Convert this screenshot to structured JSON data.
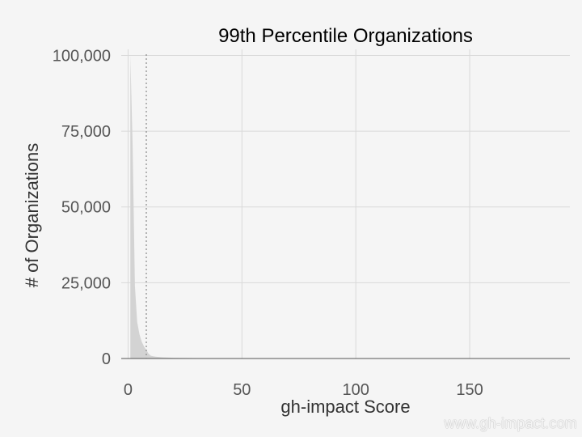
{
  "chart_data": {
    "type": "area",
    "title": "99th Percentile Organizations",
    "xlabel": "gh-impact Score",
    "ylabel": "# of Organizations",
    "xlim": [
      -3,
      194
    ],
    "ylim": [
      0,
      102000
    ],
    "x_ticks": [
      0,
      50,
      100,
      150
    ],
    "x_tick_labels": [
      "0",
      "50",
      "100",
      "150"
    ],
    "y_ticks": [
      0,
      25000,
      50000,
      75000,
      100000
    ],
    "y_tick_labels": [
      "0",
      "25,000",
      "50,000",
      "75,000",
      "100,000"
    ],
    "grid": true,
    "reference_line": {
      "x": 8,
      "style": "dotted"
    },
    "series": [
      {
        "fill": "#d3d3d3",
        "x": [
          1,
          2,
          3,
          4,
          5,
          6,
          7,
          8,
          9,
          10,
          12,
          15,
          20,
          30,
          50,
          80,
          120,
          190
        ],
        "values": [
          100000,
          70000,
          24000,
          12000,
          8000,
          5500,
          4000,
          2800,
          1600,
          900,
          600,
          400,
          250,
          120,
          50,
          20,
          8,
          2
        ]
      }
    ]
  },
  "watermark": "www.gh-impact.com",
  "colors": {
    "background": "#f5f5f5",
    "grid": "#d9d9d9",
    "fill": "#d3d3d3",
    "tick_text": "#555555",
    "baseline": "#555555"
  }
}
